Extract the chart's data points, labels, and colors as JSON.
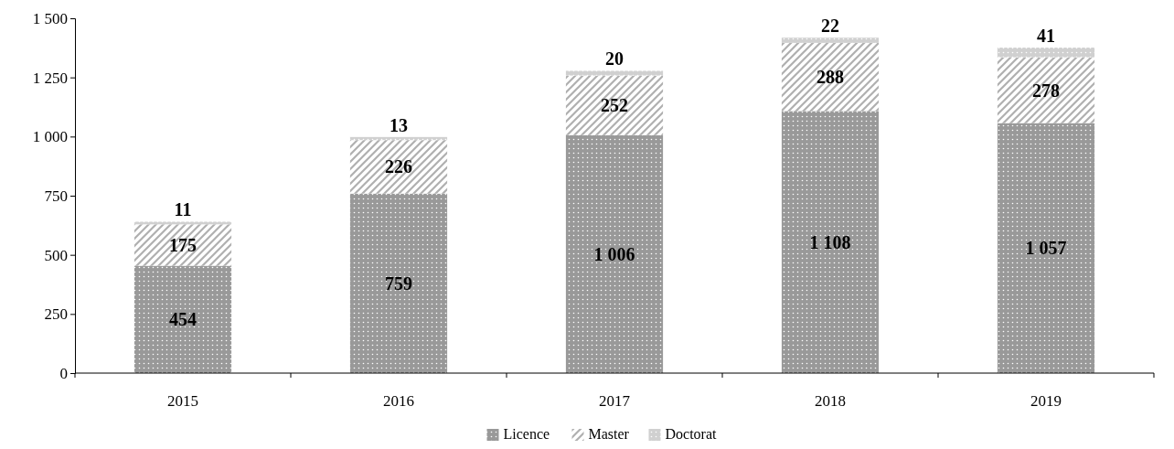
{
  "chart_data": {
    "type": "bar",
    "stacked": true,
    "categories": [
      "2015",
      "2016",
      "2017",
      "2018",
      "2019"
    ],
    "series": [
      {
        "name": "Licence",
        "color": "#999999",
        "values": [
          454,
          759,
          1006,
          1108,
          1057
        ],
        "value_labels": [
          "454",
          "759",
          "1 006",
          "1 108",
          "1 057"
        ]
      },
      {
        "name": "Master",
        "color": "#b0b0b0",
        "values": [
          175,
          226,
          252,
          288,
          278
        ],
        "value_labels": [
          "175",
          "226",
          "252",
          "288",
          "278"
        ]
      },
      {
        "name": "Doctorat",
        "color": "#d0d0d0",
        "values": [
          11,
          13,
          20,
          22,
          41
        ],
        "value_labels": [
          "11",
          "13",
          "20",
          "22",
          "41"
        ]
      }
    ],
    "ylim": [
      0,
      1500
    ],
    "yticks": [
      0,
      250,
      500,
      750,
      {
        "value": 1000,
        "label": "1 000"
      },
      {
        "value": 1250,
        "label": "1 250"
      },
      {
        "value": 1500,
        "label": "1 500"
      }
    ],
    "grid": false,
    "legend": "bottom"
  }
}
